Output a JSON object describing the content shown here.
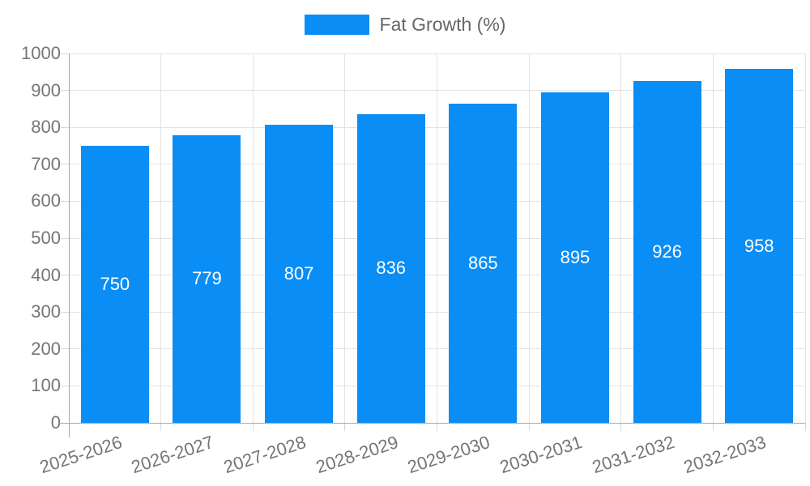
{
  "chart_data": {
    "type": "bar",
    "title": "",
    "legend": {
      "label": "Fat Growth (%)",
      "position": "top"
    },
    "categories": [
      "2025-2026",
      "2026-2027",
      "2027-2028",
      "2028-2029",
      "2029-2030",
      "2030-2031",
      "2031-2032",
      "2032-2033"
    ],
    "series": [
      {
        "name": "Fat Growth (%)",
        "values": [
          750,
          779,
          807,
          836,
          865,
          895,
          926,
          958
        ]
      }
    ],
    "value_labels_shown": true,
    "xlabel": "",
    "ylabel": "",
    "ylim": [
      0,
      1000
    ],
    "yticks": [
      0,
      100,
      200,
      300,
      400,
      500,
      600,
      700,
      800,
      900,
      1000
    ],
    "grid": true,
    "x_label_rotation_deg": -18,
    "colors": {
      "bar": "#0a8df5",
      "value_label": "#ffffff",
      "grid": "#e3e3e3",
      "axis": "#a8a8a8",
      "tick_stub": "#d8d8d8",
      "tick_text": "#757575",
      "legend_text": "#666666"
    }
  }
}
